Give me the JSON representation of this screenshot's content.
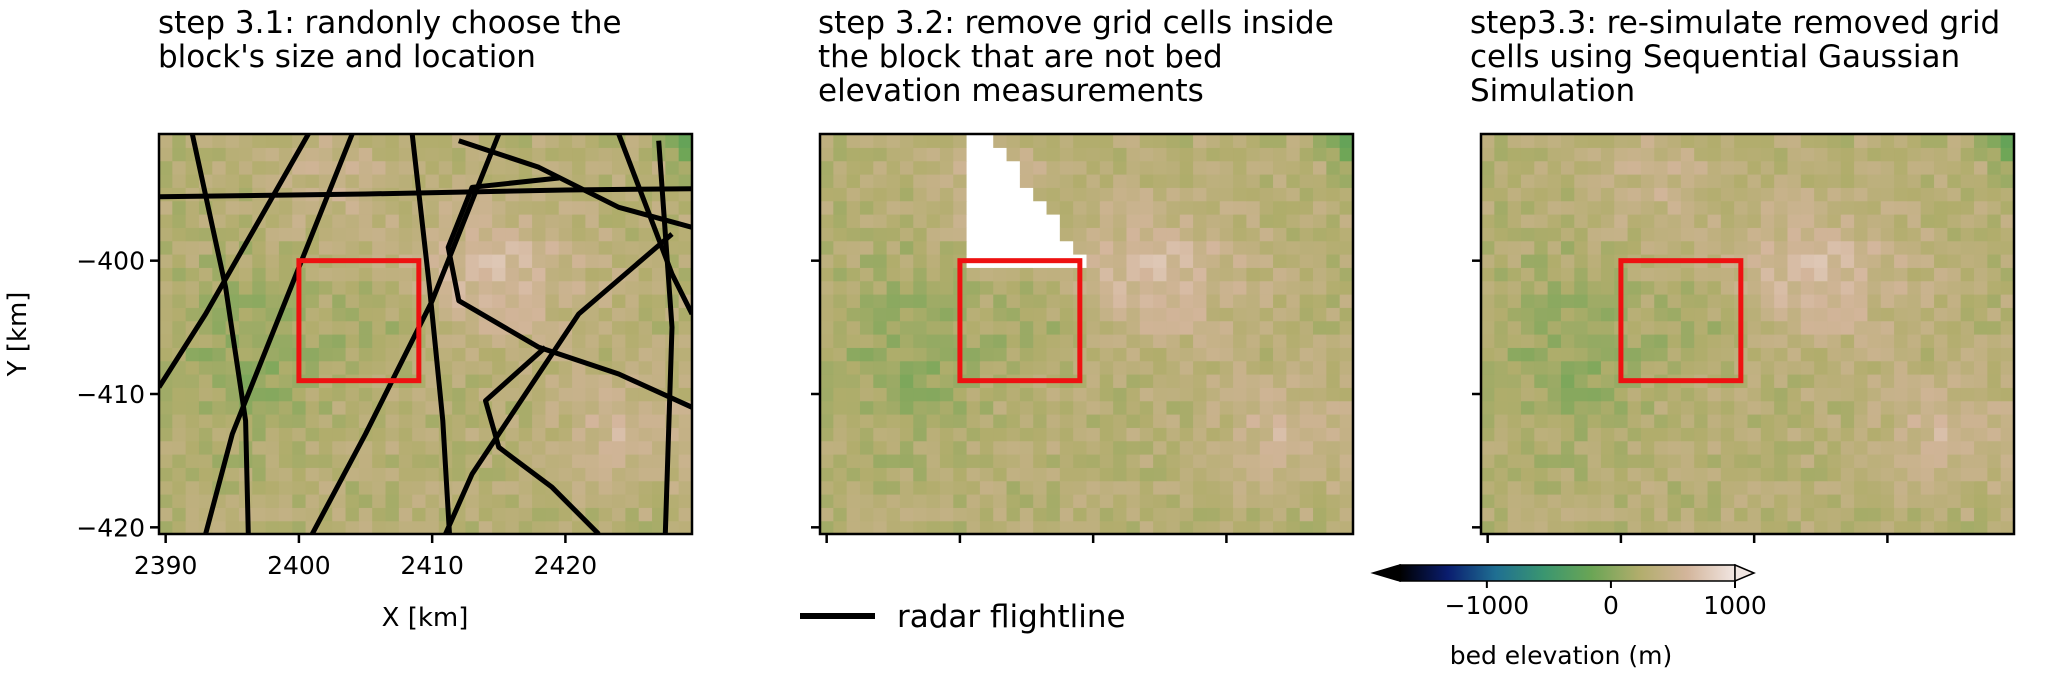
{
  "panels": [
    {
      "title": "step 3.1: randonly choose the\nblock's size and location"
    },
    {
      "title": "step 3.2: remove grid cells inside\nthe block that are not bed\nelevation measurements"
    },
    {
      "title": "step3.3: re-simulate removed grid\ncells using Sequential Gaussian\nSimulation"
    }
  ],
  "chart_data": [
    {
      "type": "heatmap",
      "title": "step 3.1: randonly choose the block's size and location",
      "xlabel": "X [km]",
      "ylabel": "Y [km]",
      "xlim": [
        2389.5,
        2429.5
      ],
      "ylim": [
        -420.5,
        -390.5
      ],
      "xticks": [
        2390,
        2400,
        2410,
        2420
      ],
      "xtick_labels": [
        "2390",
        "2400",
        "2410",
        "2420"
      ],
      "yticks": [
        -400,
        -410,
        -420
      ],
      "ytick_labels": [
        "−400",
        "−410",
        "−420"
      ],
      "block": {
        "x": [
          2400,
          2409
        ],
        "y": [
          -409,
          -400
        ],
        "color": "#ee1111"
      },
      "flightlines_shown": true
    },
    {
      "type": "heatmap",
      "title": "step 3.2: remove grid cells inside the block that are not bed elevation measurements",
      "xlim": [
        2389.5,
        2429.5
      ],
      "ylim": [
        -420.5,
        -390.5
      ],
      "xticks": [
        2390,
        2400,
        2410,
        2420
      ],
      "yticks": [
        -400,
        -410,
        -420
      ],
      "block": {
        "x": [
          2400,
          2409
        ],
        "y": [
          -409,
          -400
        ],
        "color": "#ee1111"
      },
      "removed_cells_inside_block": true
    },
    {
      "type": "heatmap",
      "title": "step3.3: re-simulate removed grid cells using Sequential Gaussian Simulation",
      "xlim": [
        2389.5,
        2429.5
      ],
      "ylim": [
        -420.5,
        -390.5
      ],
      "xticks": [
        2390,
        2400,
        2410,
        2420
      ],
      "yticks": [
        -400,
        -410,
        -420
      ],
      "block": {
        "x": [
          2400,
          2409
        ],
        "y": [
          -409,
          -400
        ],
        "color": "#ee1111"
      }
    }
  ],
  "legend": {
    "label": "radar flightline",
    "color": "#000000"
  },
  "colorbar": {
    "label": "bed elevation (m)",
    "range": [
      -1700,
      1000
    ],
    "extend": "both",
    "ticks": [
      -1000,
      0,
      1000
    ],
    "tick_labels": [
      "−1000",
      "0",
      "1000"
    ],
    "colormap": "gist_earth",
    "colors": [
      "#000000",
      "#0a1d6f",
      "#1f6f92",
      "#3a9670",
      "#6aa555",
      "#b1ad6c",
      "#d3b59b",
      "#f1e6e2"
    ]
  }
}
